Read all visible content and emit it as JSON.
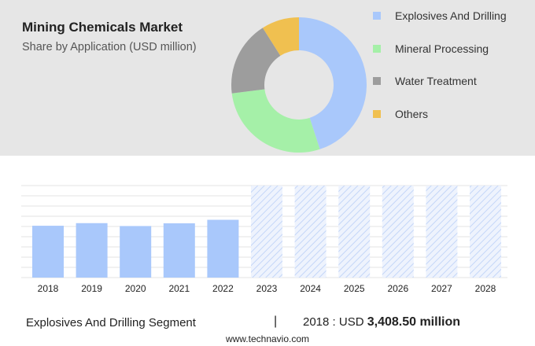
{
  "header": {
    "title": "Mining Chemicals Market",
    "subtitle": "Share by Application (USD million)"
  },
  "chart_data": [
    {
      "type": "pie",
      "variant": "donut",
      "slices": [
        {
          "label": "Explosives And Drilling",
          "value": 45,
          "color": "#a9c8fb"
        },
        {
          "label": "Mineral Processing",
          "value": 28,
          "color": "#a5f0a8"
        },
        {
          "label": "Water Treatment",
          "value": 18,
          "color": "#9d9d9d"
        },
        {
          "label": "Others",
          "value": 9,
          "color": "#f0c050"
        }
      ],
      "legend_position": "right"
    },
    {
      "type": "bar",
      "categories": [
        "2018",
        "2019",
        "2020",
        "2021",
        "2022",
        "2023",
        "2024",
        "2025",
        "2026",
        "2027",
        "2028"
      ],
      "series": [
        {
          "values": [
            3408.5,
            3580,
            3390,
            3570,
            3800,
            6050,
            6050,
            6050,
            6050,
            6050,
            6050
          ]
        }
      ],
      "forecast_from": "2023",
      "bar_color": "#a9c8fb",
      "forecast_color": "#d3e2fb",
      "ylim": [
        0,
        6050
      ],
      "grid": true
    }
  ],
  "footer": {
    "segment": "Explosives And Drilling Segment",
    "separator": "|",
    "year_label": "2018 : USD",
    "value": "3,408.50 million",
    "website": "www.technavio.com"
  }
}
